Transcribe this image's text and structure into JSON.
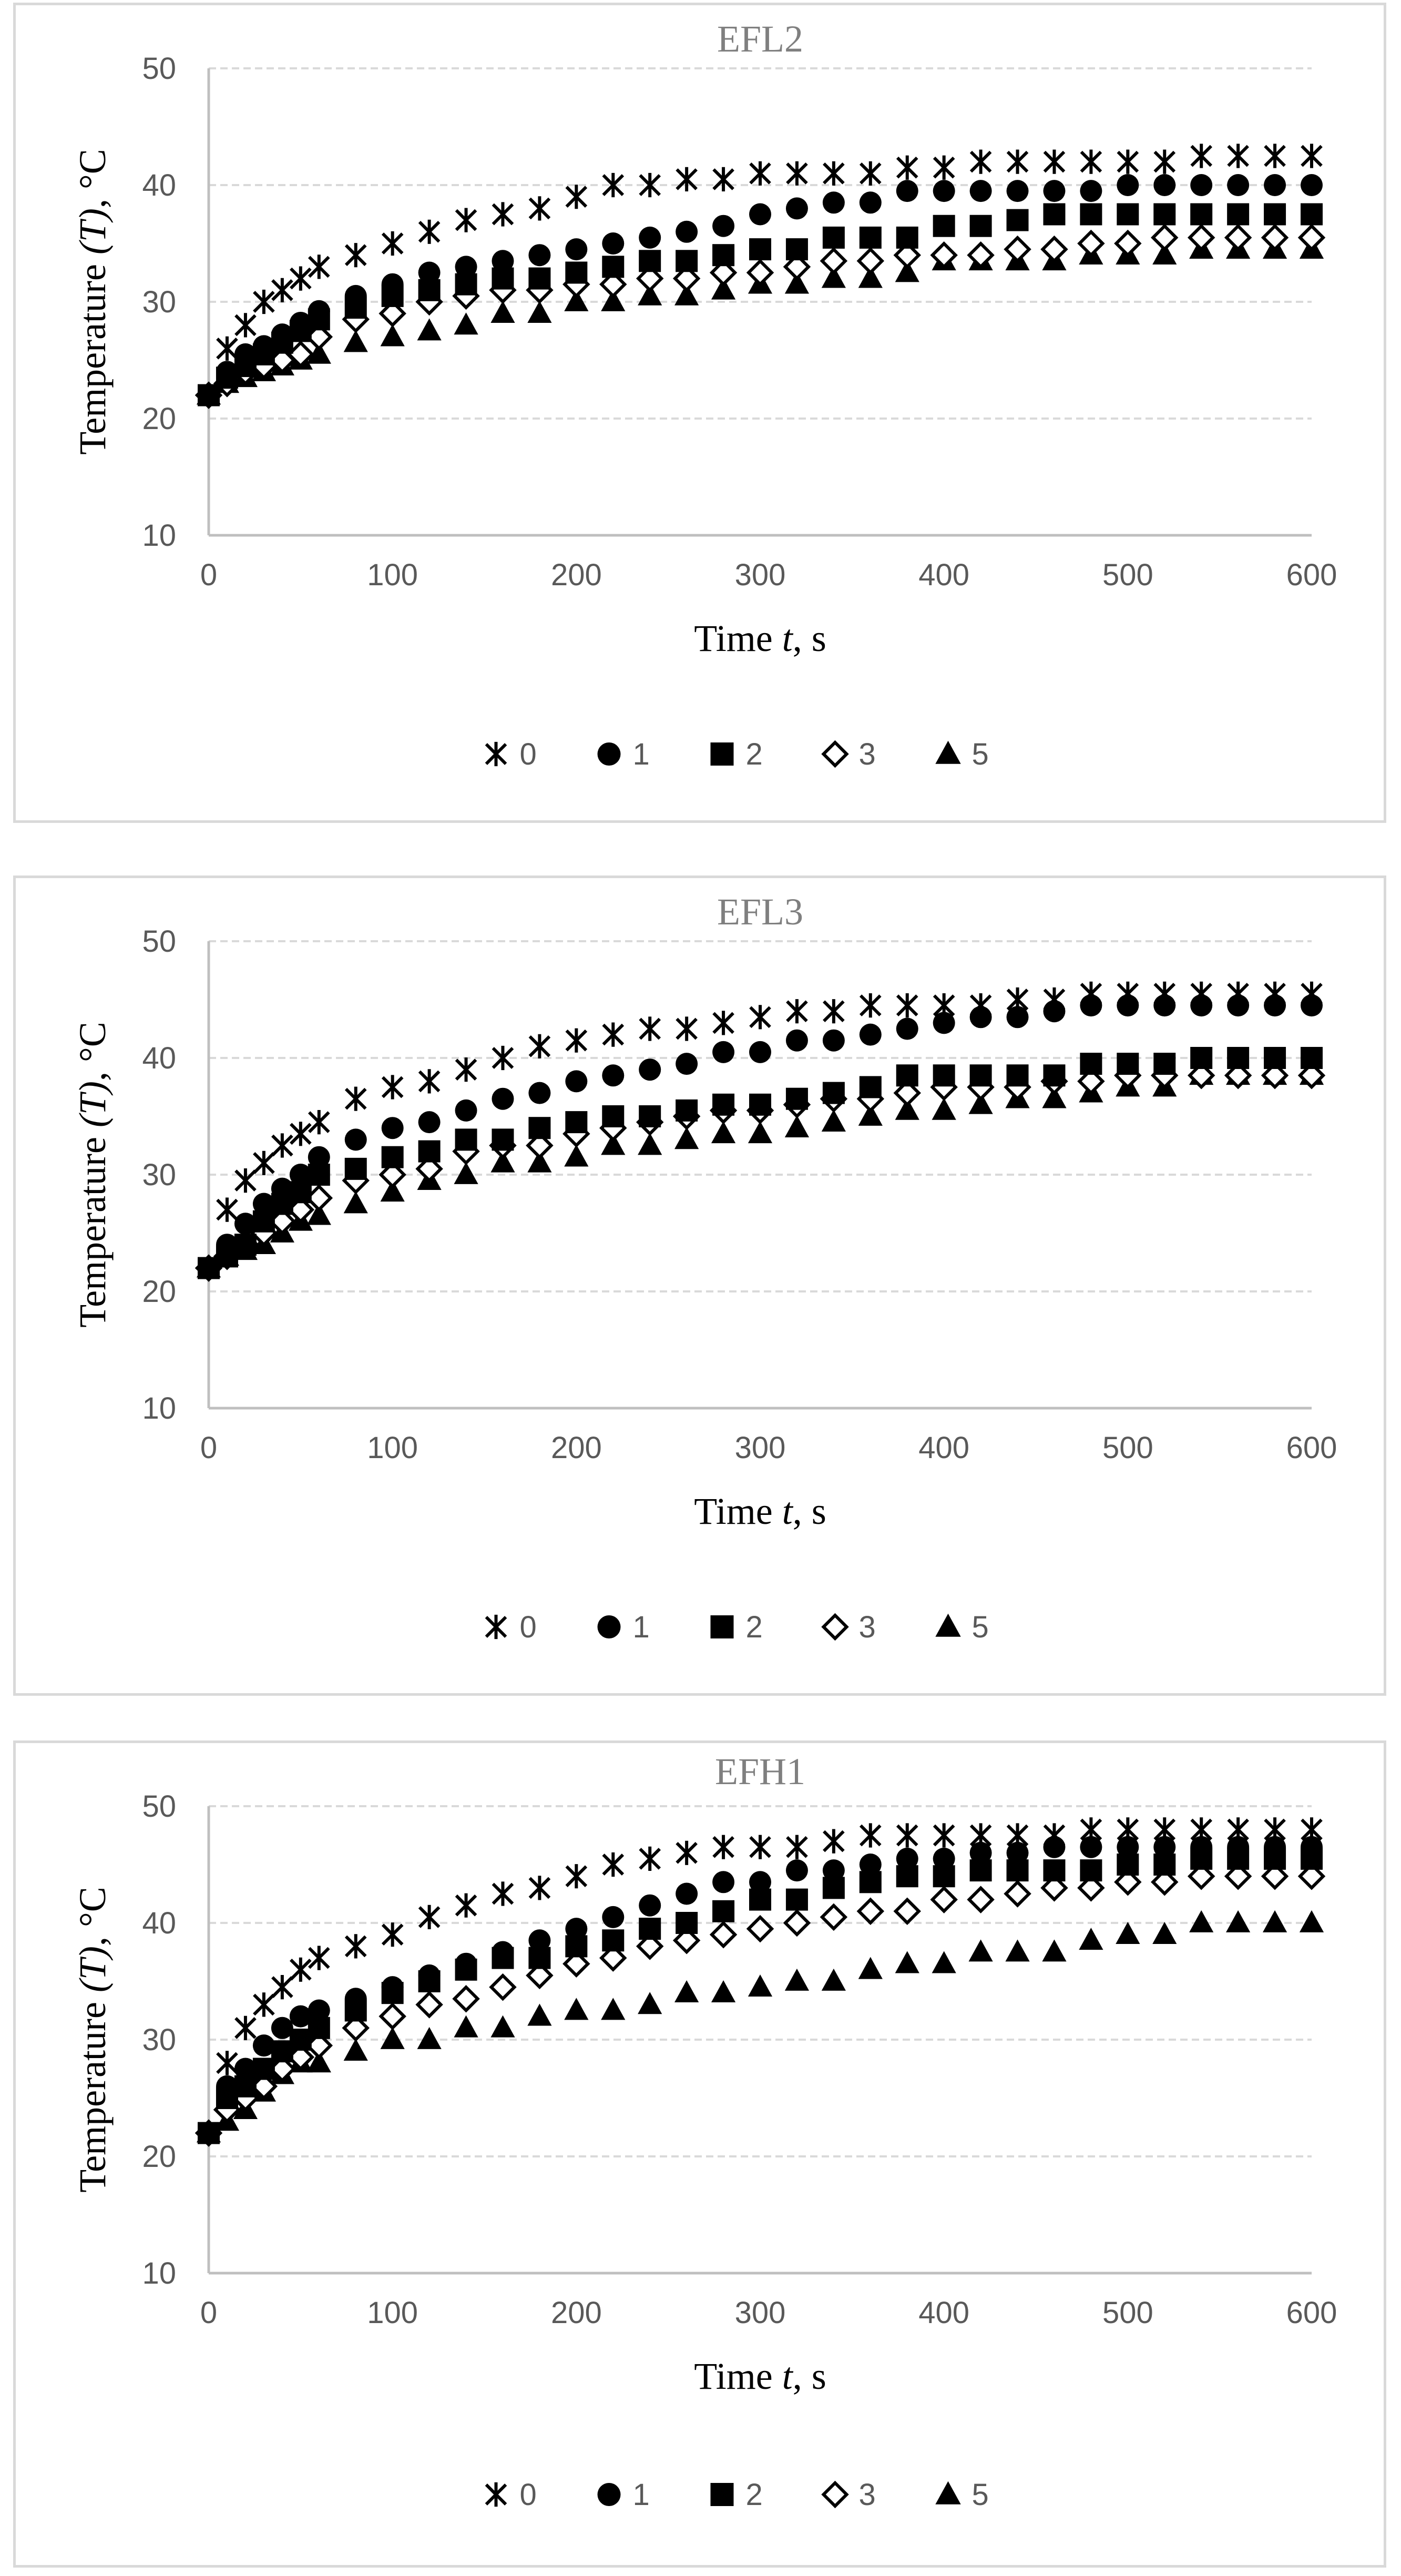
{
  "colors": {
    "marker": "#000000",
    "grid": "#d9d9d9",
    "axis": "#bfbfbf",
    "tick_text": "#595959",
    "title_text": "#7f7f7f",
    "border": "#d9d9d9"
  },
  "chart_data": [
    {
      "type": "scatter",
      "title": "EFL2",
      "xlabel_main": "Time ",
      "xlabel_italic": "t",
      "xlabel_tail": ", s",
      "ylabel_main": "Temperature ",
      "ylabel_italic": "(T)",
      "ylabel_tail": ", °C",
      "xlim": [
        0,
        600
      ],
      "ylim": [
        10,
        50
      ],
      "xticks": [
        0,
        100,
        200,
        300,
        400,
        500,
        600
      ],
      "yticks": [
        10,
        20,
        30,
        40,
        50
      ],
      "grid": true,
      "legend_position": "bottom",
      "x": [
        0,
        10,
        20,
        30,
        40,
        50,
        60,
        80,
        100,
        120,
        140,
        160,
        180,
        200,
        220,
        240,
        260,
        280,
        300,
        320,
        340,
        360,
        380,
        400,
        420,
        440,
        460,
        480,
        500,
        520,
        540,
        560,
        580,
        600
      ],
      "series": [
        {
          "name": "0",
          "marker": "star",
          "values": [
            22,
            26,
            28,
            30,
            31,
            32,
            33,
            34,
            35,
            36,
            37,
            37.5,
            38,
            39,
            40,
            40,
            40.5,
            40.5,
            41,
            41,
            41,
            41,
            41.5,
            41.5,
            42,
            42,
            42,
            42,
            42,
            42,
            42.5,
            42.5,
            42.5,
            42.5
          ]
        },
        {
          "name": "1",
          "marker": "circle",
          "values": [
            22,
            24,
            25.5,
            26.2,
            27.2,
            28.2,
            29.2,
            30.5,
            31.5,
            32.5,
            33,
            33.5,
            34,
            34.5,
            35,
            35.5,
            36,
            36.5,
            37.5,
            38,
            38.5,
            38.5,
            39.5,
            39.5,
            39.5,
            39.5,
            39.5,
            39.5,
            40,
            40,
            40,
            40,
            40,
            40
          ]
        },
        {
          "name": "2",
          "marker": "square",
          "values": [
            22,
            23.5,
            24.5,
            25.5,
            26.5,
            27.5,
            28.5,
            29.5,
            30.5,
            31,
            31.5,
            32,
            32,
            32.5,
            33,
            33.5,
            33.5,
            34,
            34.5,
            34.5,
            35.5,
            35.5,
            35.5,
            36.5,
            36.5,
            37,
            37.5,
            37.5,
            37.5,
            37.5,
            37.5,
            37.5,
            37.5,
            37.5
          ]
        },
        {
          "name": "3",
          "marker": "diamond",
          "values": [
            22,
            23,
            24,
            24.5,
            25,
            25.5,
            27,
            28.5,
            29,
            30,
            30.5,
            31,
            31,
            31.5,
            31.5,
            32,
            32,
            32.5,
            32.5,
            33,
            33.5,
            33.5,
            34,
            34,
            34,
            34.5,
            34.5,
            35,
            35,
            35.5,
            35.5,
            35.5,
            35.5,
            35.5
          ]
        },
        {
          "name": "5",
          "marker": "triangle",
          "values": [
            22,
            23,
            23.5,
            24,
            24.5,
            25,
            25.5,
            26.5,
            27,
            27.5,
            28,
            29,
            29,
            30,
            30,
            30.5,
            30.5,
            31,
            31.5,
            31.5,
            32,
            32,
            32.5,
            33.5,
            33.5,
            33.5,
            33.5,
            34,
            34,
            34,
            34.5,
            34.5,
            34.5,
            34.5
          ]
        }
      ]
    },
    {
      "type": "scatter",
      "title": "EFL3",
      "xlabel_main": "Time ",
      "xlabel_italic": "t",
      "xlabel_tail": ", s",
      "ylabel_main": "Temperature ",
      "ylabel_italic": "(T)",
      "ylabel_tail": ", °C",
      "xlim": [
        0,
        600
      ],
      "ylim": [
        10,
        50
      ],
      "xticks": [
        0,
        100,
        200,
        300,
        400,
        500,
        600
      ],
      "yticks": [
        10,
        20,
        30,
        40,
        50
      ],
      "grid": true,
      "legend_position": "bottom",
      "x": [
        0,
        10,
        20,
        30,
        40,
        50,
        60,
        80,
        100,
        120,
        140,
        160,
        180,
        200,
        220,
        240,
        260,
        280,
        300,
        320,
        340,
        360,
        380,
        400,
        420,
        440,
        460,
        480,
        500,
        520,
        540,
        560,
        580,
        600
      ],
      "series": [
        {
          "name": "0",
          "marker": "star",
          "values": [
            22,
            27,
            29.5,
            31,
            32.5,
            33.5,
            34.5,
            36.5,
            37.5,
            38,
            39,
            40,
            41,
            41.5,
            42,
            42.5,
            42.5,
            43,
            43.5,
            44,
            44,
            44.5,
            44.5,
            44.5,
            44.5,
            45,
            45,
            45.5,
            45.5,
            45.5,
            45.5,
            45.5,
            45.5,
            45.5
          ]
        },
        {
          "name": "1",
          "marker": "circle",
          "values": [
            22,
            24,
            25.8,
            27.5,
            28.8,
            30,
            31.5,
            33,
            34,
            34.5,
            35.5,
            36.5,
            37,
            38,
            38.5,
            39,
            39.5,
            40.5,
            40.5,
            41.5,
            41.5,
            42,
            42.5,
            43,
            43.5,
            43.5,
            44,
            44.5,
            44.5,
            44.5,
            44.5,
            44.5,
            44.5,
            44.5
          ]
        },
        {
          "name": "2",
          "marker": "square",
          "values": [
            22,
            23,
            24,
            26,
            27.5,
            28.5,
            30,
            30.5,
            31.5,
            32,
            33,
            33,
            34,
            34.5,
            35,
            35,
            35.5,
            36,
            36,
            36.5,
            37,
            37.5,
            38.5,
            38.5,
            38.5,
            38.5,
            38.5,
            39.5,
            39.5,
            39.5,
            40,
            40,
            40,
            40
          ]
        },
        {
          "name": "3",
          "marker": "diamond",
          "values": [
            22,
            23,
            24,
            25,
            26,
            27,
            28,
            29.5,
            30,
            30.5,
            32,
            32.5,
            32.5,
            33.5,
            34,
            34.5,
            35,
            35.5,
            35.5,
            36,
            36.5,
            36.5,
            37,
            37.5,
            37.5,
            37.5,
            38,
            38,
            38.5,
            38.5,
            38.5,
            38.5,
            38.5,
            38.5
          ]
        },
        {
          "name": "5",
          "marker": "triangle",
          "values": [
            22,
            23,
            23.5,
            24,
            25,
            26,
            26.5,
            27.5,
            28.5,
            29.5,
            30,
            31,
            31,
            31.5,
            32.5,
            32.5,
            33,
            33.5,
            33.5,
            34,
            34.5,
            35,
            35.5,
            35.5,
            36,
            36.5,
            36.5,
            37,
            37.5,
            37.5,
            38.5,
            38.5,
            38.5,
            38.5
          ]
        }
      ]
    },
    {
      "type": "scatter",
      "title": "EFH1",
      "xlabel_main": "Time ",
      "xlabel_italic": "t",
      "xlabel_tail": ", s",
      "ylabel_main": "Temperature ",
      "ylabel_italic": "(T)",
      "ylabel_tail": ", °C",
      "xlim": [
        0,
        600
      ],
      "ylim": [
        10,
        50
      ],
      "xticks": [
        0,
        100,
        200,
        300,
        400,
        500,
        600
      ],
      "yticks": [
        10,
        20,
        30,
        40,
        50
      ],
      "grid": true,
      "legend_position": "bottom",
      "x": [
        0,
        10,
        20,
        30,
        40,
        50,
        60,
        80,
        100,
        120,
        140,
        160,
        180,
        200,
        220,
        240,
        260,
        280,
        300,
        320,
        340,
        360,
        380,
        400,
        420,
        440,
        460,
        480,
        500,
        520,
        540,
        560,
        580,
        600
      ],
      "series": [
        {
          "name": "0",
          "marker": "star",
          "values": [
            22,
            28,
            31,
            33,
            34.5,
            36,
            37,
            38,
            39,
            40.5,
            41.5,
            42.5,
            43,
            44,
            45,
            45.5,
            46,
            46.5,
            46.5,
            46.5,
            47,
            47.5,
            47.5,
            47.5,
            47.5,
            47.5,
            47.5,
            48,
            48,
            48,
            48,
            48,
            48,
            48
          ]
        },
        {
          "name": "1",
          "marker": "circle",
          "values": [
            22,
            26,
            27.5,
            29.5,
            31,
            32,
            32.5,
            33.5,
            34.5,
            35.5,
            36.5,
            37.5,
            38.5,
            39.5,
            40.5,
            41.5,
            42.5,
            43.5,
            43.5,
            44.5,
            44.5,
            45,
            45.5,
            45.5,
            46,
            46,
            46.5,
            46.5,
            46.5,
            46.5,
            46.5,
            46.5,
            46.5,
            46.5
          ]
        },
        {
          "name": "2",
          "marker": "square",
          "values": [
            22,
            25,
            26,
            27.5,
            29,
            30,
            31,
            32.5,
            34,
            35,
            36,
            37,
            37,
            38,
            38.5,
            39.5,
            40,
            41,
            42,
            42,
            43,
            43.5,
            44,
            44,
            44.5,
            44.5,
            44.5,
            44.5,
            45,
            45,
            45.5,
            45.5,
            45.5,
            45.5
          ]
        },
        {
          "name": "3",
          "marker": "diamond",
          "values": [
            22,
            24,
            25,
            26,
            27.5,
            28.5,
            29.5,
            31,
            32,
            33,
            33.5,
            34.5,
            35.5,
            36.5,
            37,
            38,
            38.5,
            39,
            39.5,
            40,
            40.5,
            41,
            41,
            42,
            42,
            42.5,
            43,
            43,
            43.5,
            43.5,
            44,
            44,
            44,
            44
          ]
        },
        {
          "name": "5",
          "marker": "triangle",
          "values": [
            22,
            23,
            24,
            25.5,
            27,
            28,
            28,
            29,
            30,
            30,
            31,
            31,
            32,
            32.5,
            32.5,
            33,
            34,
            34,
            34.5,
            35,
            35,
            36,
            36.5,
            36.5,
            37.5,
            37.5,
            37.5,
            38.5,
            39,
            39,
            40,
            40,
            40,
            40
          ]
        }
      ]
    }
  ]
}
